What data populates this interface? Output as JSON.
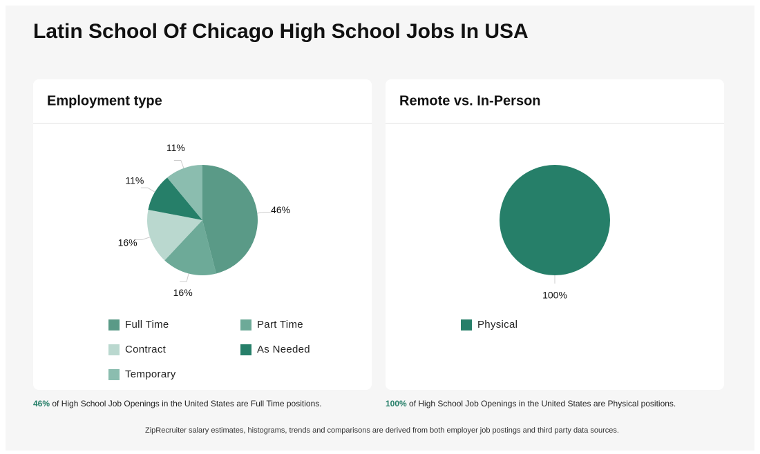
{
  "title": "Latin School Of Chicago High School Jobs In USA",
  "chart_data": [
    {
      "type": "pie",
      "title": "Employment type",
      "categories": [
        "Full Time",
        "Part Time",
        "Contract",
        "As Needed",
        "Temporary"
      ],
      "values": [
        46,
        16,
        16,
        11,
        11
      ],
      "value_labels": [
        "46%",
        "16%",
        "16%",
        "11%",
        "11%"
      ],
      "colors": [
        "#5a9a87",
        "#6daa98",
        "#bad8cf",
        "#267f69",
        "#8bbdaf"
      ]
    },
    {
      "type": "pie",
      "title": "Remote vs. In-Person",
      "categories": [
        "Physical"
      ],
      "values": [
        100
      ],
      "value_labels": [
        "100%"
      ],
      "colors": [
        "#267f69"
      ]
    }
  ],
  "notes": [
    {
      "highlight": "46%",
      "text": "of High School Job Openings in the United States are Full Time positions."
    },
    {
      "highlight": "100%",
      "text": "of High School Job Openings in the United States are Physical positions."
    }
  ],
  "footer": "ZipRecruiter salary estimates, histograms, trends and comparisons are derived from both employer job postings and third party data sources."
}
